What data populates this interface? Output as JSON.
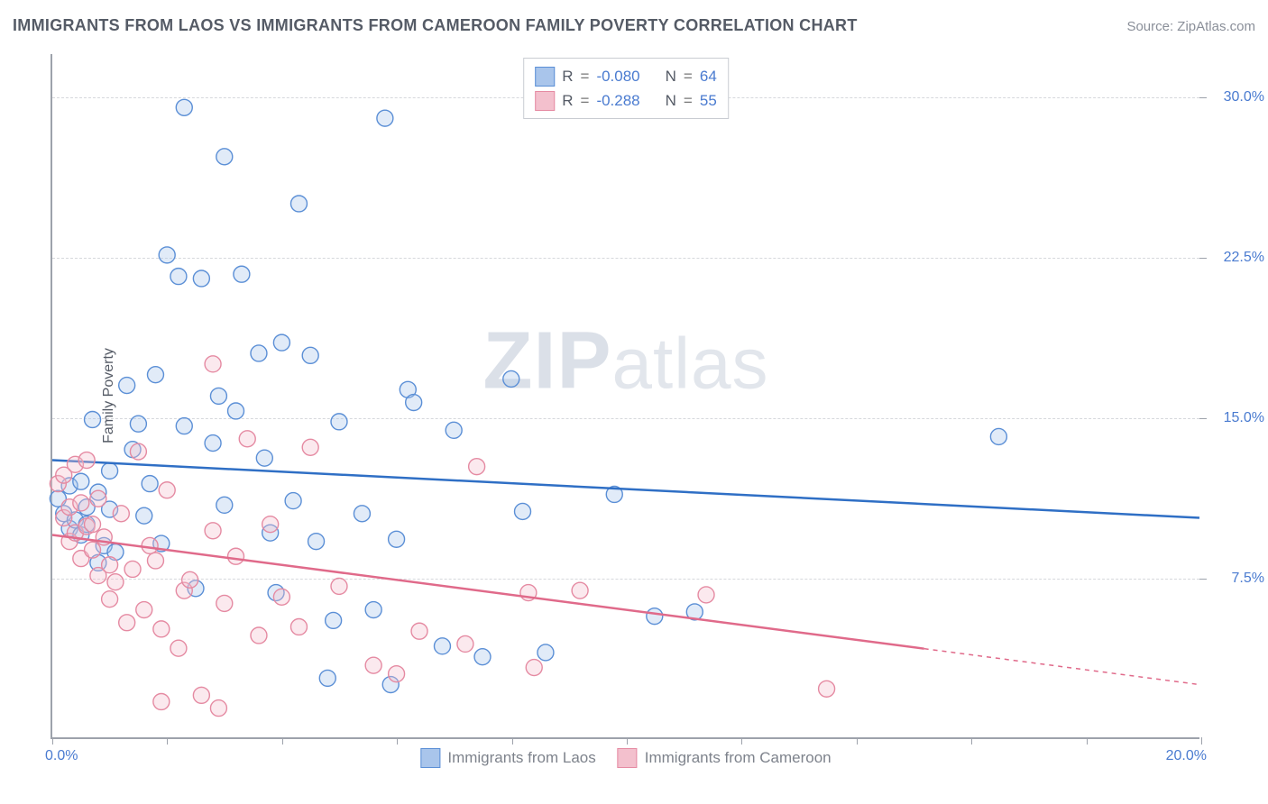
{
  "chart": {
    "type": "scatter",
    "title": "IMMIGRANTS FROM LAOS VS IMMIGRANTS FROM CAMEROON FAMILY POVERTY CORRELATION CHART",
    "source_label": "Source: ZipAtlas.com",
    "ylabel": "Family Poverty",
    "watermark": "ZIPatlas",
    "xlim": [
      0,
      20
    ],
    "ylim": [
      0,
      32
    ],
    "x_ticks_minor": [
      0,
      2,
      4,
      6,
      8,
      10,
      12,
      14,
      16,
      18,
      20
    ],
    "x_tick_labels": [
      {
        "value": 0,
        "label": "0.0%"
      },
      {
        "value": 20,
        "label": "20.0%"
      }
    ],
    "y_grid": [
      7.5,
      15.0,
      22.5,
      30.0
    ],
    "y_tick_labels": [
      {
        "value": 7.5,
        "label": "7.5%"
      },
      {
        "value": 15.0,
        "label": "15.0%"
      },
      {
        "value": 22.5,
        "label": "22.5%"
      },
      {
        "value": 30.0,
        "label": "30.0%"
      }
    ],
    "background_color": "#ffffff",
    "grid_color": "#d6d8dc",
    "axis_color": "#9da2ab",
    "title_color": "#555b66",
    "tick_label_color": "#4a7bd0",
    "marker_radius": 9,
    "marker_fill_opacity": 0.35,
    "series": [
      {
        "key": "laos",
        "label": "Immigrants from Laos",
        "color_stroke": "#5b8fd6",
        "color_fill": "#a9c5eb",
        "trend_color": "#2f6fc5",
        "R": "-0.080",
        "N": "64",
        "trend": {
          "x1": 0,
          "y1": 13.0,
          "x2": 20,
          "y2": 10.3,
          "dash_from_x": null
        },
        "points": [
          [
            0.1,
            11.2
          ],
          [
            0.2,
            10.5
          ],
          [
            0.3,
            11.8
          ],
          [
            0.3,
            9.8
          ],
          [
            0.4,
            10.2
          ],
          [
            0.5,
            12.0
          ],
          [
            0.5,
            9.5
          ],
          [
            0.6,
            10.0
          ],
          [
            0.6,
            10.8
          ],
          [
            0.7,
            14.9
          ],
          [
            0.8,
            11.5
          ],
          [
            0.8,
            8.2
          ],
          [
            0.9,
            9.0
          ],
          [
            1.0,
            10.7
          ],
          [
            1.0,
            12.5
          ],
          [
            1.1,
            8.7
          ],
          [
            1.3,
            16.5
          ],
          [
            1.4,
            13.5
          ],
          [
            1.5,
            14.7
          ],
          [
            1.6,
            10.4
          ],
          [
            1.7,
            11.9
          ],
          [
            1.8,
            17.0
          ],
          [
            1.9,
            9.1
          ],
          [
            2.0,
            22.6
          ],
          [
            2.2,
            21.6
          ],
          [
            2.3,
            14.6
          ],
          [
            2.3,
            29.5
          ],
          [
            2.5,
            7.0
          ],
          [
            2.6,
            21.5
          ],
          [
            2.8,
            13.8
          ],
          [
            2.9,
            16.0
          ],
          [
            3.0,
            27.2
          ],
          [
            3.0,
            10.9
          ],
          [
            3.2,
            15.3
          ],
          [
            3.3,
            21.7
          ],
          [
            3.6,
            18.0
          ],
          [
            3.7,
            13.1
          ],
          [
            3.8,
            9.6
          ],
          [
            3.9,
            6.8
          ],
          [
            4.0,
            18.5
          ],
          [
            4.2,
            11.1
          ],
          [
            4.3,
            25.0
          ],
          [
            4.5,
            17.9
          ],
          [
            4.6,
            9.2
          ],
          [
            4.8,
            2.8
          ],
          [
            4.9,
            5.5
          ],
          [
            5.0,
            14.8
          ],
          [
            5.4,
            10.5
          ],
          [
            5.6,
            6.0
          ],
          [
            5.8,
            29.0
          ],
          [
            5.9,
            2.5
          ],
          [
            6.0,
            9.3
          ],
          [
            6.2,
            16.3
          ],
          [
            6.3,
            15.7
          ],
          [
            6.8,
            4.3
          ],
          [
            7.0,
            14.4
          ],
          [
            7.5,
            3.8
          ],
          [
            8.0,
            16.8
          ],
          [
            8.2,
            10.6
          ],
          [
            8.6,
            4.0
          ],
          [
            9.8,
            11.4
          ],
          [
            10.5,
            5.7
          ],
          [
            11.2,
            5.9
          ],
          [
            16.5,
            14.1
          ]
        ]
      },
      {
        "key": "cameroon",
        "label": "Immigrants from Cameroon",
        "color_stroke": "#e58aa2",
        "color_fill": "#f3c0cd",
        "trend_color": "#e06a8a",
        "R": "-0.288",
        "N": "55",
        "trend": {
          "x1": 0,
          "y1": 9.5,
          "x2": 20,
          "y2": 2.5,
          "dash_from_x": 15.2
        },
        "points": [
          [
            0.1,
            11.9
          ],
          [
            0.2,
            10.3
          ],
          [
            0.2,
            12.3
          ],
          [
            0.3,
            9.2
          ],
          [
            0.3,
            10.8
          ],
          [
            0.4,
            12.8
          ],
          [
            0.4,
            9.6
          ],
          [
            0.5,
            11.0
          ],
          [
            0.5,
            8.4
          ],
          [
            0.6,
            9.9
          ],
          [
            0.6,
            13.0
          ],
          [
            0.7,
            8.8
          ],
          [
            0.7,
            10.0
          ],
          [
            0.8,
            11.2
          ],
          [
            0.8,
            7.6
          ],
          [
            0.9,
            9.4
          ],
          [
            1.0,
            6.5
          ],
          [
            1.0,
            8.1
          ],
          [
            1.1,
            7.3
          ],
          [
            1.2,
            10.5
          ],
          [
            1.3,
            5.4
          ],
          [
            1.4,
            7.9
          ],
          [
            1.5,
            13.4
          ],
          [
            1.6,
            6.0
          ],
          [
            1.7,
            9.0
          ],
          [
            1.8,
            8.3
          ],
          [
            1.9,
            5.1
          ],
          [
            1.9,
            1.7
          ],
          [
            2.0,
            11.6
          ],
          [
            2.2,
            4.2
          ],
          [
            2.3,
            6.9
          ],
          [
            2.4,
            7.4
          ],
          [
            2.6,
            2.0
          ],
          [
            2.8,
            9.7
          ],
          [
            2.8,
            17.5
          ],
          [
            2.9,
            1.4
          ],
          [
            3.0,
            6.3
          ],
          [
            3.2,
            8.5
          ],
          [
            3.4,
            14.0
          ],
          [
            3.6,
            4.8
          ],
          [
            3.8,
            10.0
          ],
          [
            4.0,
            6.6
          ],
          [
            4.3,
            5.2
          ],
          [
            4.5,
            13.6
          ],
          [
            5.0,
            7.1
          ],
          [
            5.6,
            3.4
          ],
          [
            6.0,
            3.0
          ],
          [
            6.4,
            5.0
          ],
          [
            7.2,
            4.4
          ],
          [
            7.4,
            12.7
          ],
          [
            8.3,
            6.8
          ],
          [
            8.4,
            3.3
          ],
          [
            9.2,
            6.9
          ],
          [
            11.4,
            6.7
          ],
          [
            13.5,
            2.3
          ]
        ]
      }
    ],
    "legend_top_rows": [
      {
        "series_key": "laos",
        "parts": [
          "R",
          " = ",
          "-0.080",
          "   N",
          " = ",
          "64"
        ]
      },
      {
        "series_key": "cameroon",
        "parts": [
          "R",
          " = ",
          "-0.288",
          "   N",
          " = ",
          "55"
        ]
      }
    ]
  }
}
